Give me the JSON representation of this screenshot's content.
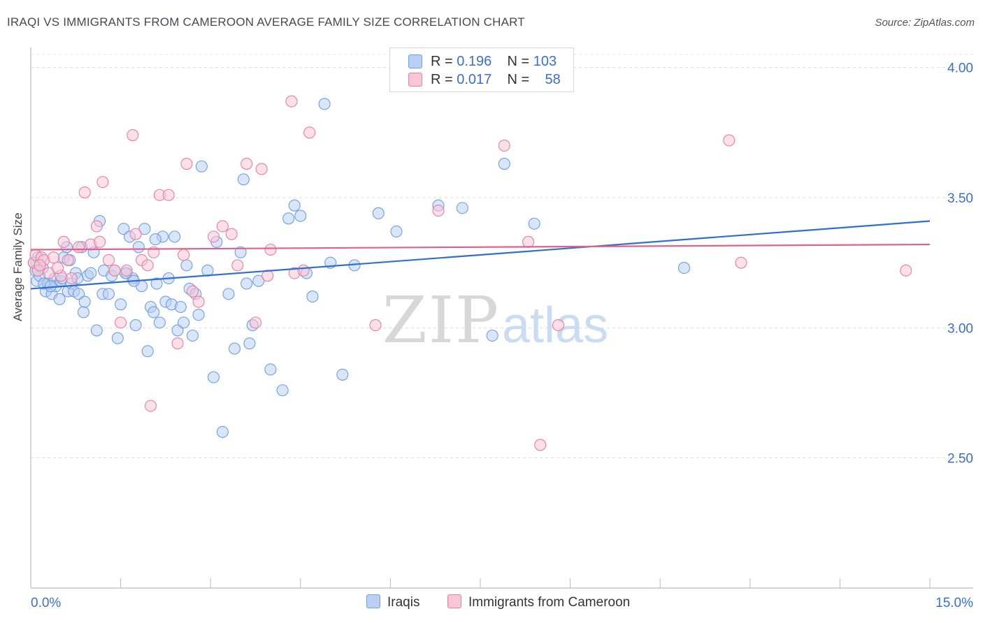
{
  "header": {
    "title": "IRAQI VS IMMIGRANTS FROM CAMEROON AVERAGE FAMILY SIZE CORRELATION CHART",
    "source": "Source: ZipAtlas.com"
  },
  "legend": {
    "rows": [
      {
        "r_label": "R =",
        "r_value": "0.196",
        "n_label": "N =",
        "n_value": "103"
      },
      {
        "r_label": "R =",
        "r_value": "0.017",
        "n_label": "N =",
        "n_value": "58"
      }
    ]
  },
  "watermark": {
    "zip": "ZIP",
    "atlas": "atlas"
  },
  "colors": {
    "iraqis": "#6f9fe0",
    "iraqis_fill": "#b9cff3",
    "cameroon": "#e97fa4",
    "cameroon_fill": "#f8c6d6",
    "iraqis_line": "#2f6fcf",
    "cameroon_line": "#e0608f",
    "tick_label": "#3a6fd0"
  },
  "chart_data": {
    "type": "scatter",
    "title": "IRAQI VS IMMIGRANTS FROM CAMEROON AVERAGE FAMILY SIZE CORRELATION CHART",
    "xlabel": "",
    "ylabel": "Average Family Size",
    "xlim": [
      0,
      15
    ],
    "ylim": [
      2.0,
      4.05
    ],
    "x_tick_labels": [
      "0.0%",
      "15.0%"
    ],
    "y_ticks": [
      2.5,
      3.0,
      3.5,
      4.0
    ],
    "y_tick_labels": [
      "2.50",
      "3.00",
      "3.50",
      "4.00"
    ],
    "grid": true,
    "legend_position": "top-center",
    "series": [
      {
        "name": "Iraqis",
        "regression": {
          "x": [
            0,
            15
          ],
          "y": [
            3.15,
            3.41
          ]
        },
        "points": [
          [
            0.05,
            3.25
          ],
          [
            0.08,
            3.22
          ],
          [
            0.1,
            3.18
          ],
          [
            0.12,
            3.27
          ],
          [
            0.15,
            3.2
          ],
          [
            0.2,
            3.23
          ],
          [
            0.25,
            3.14
          ],
          [
            0.28,
            3.17
          ],
          [
            0.3,
            3.17
          ],
          [
            0.35,
            3.13
          ],
          [
            0.4,
            3.19
          ],
          [
            0.42,
            3.16
          ],
          [
            0.48,
            3.11
          ],
          [
            0.5,
            3.18
          ],
          [
            0.55,
            3.27
          ],
          [
            0.6,
            3.31
          ],
          [
            0.62,
            3.14
          ],
          [
            0.68,
            3.17
          ],
          [
            0.72,
            3.14
          ],
          [
            0.75,
            3.21
          ],
          [
            0.8,
            3.13
          ],
          [
            0.85,
            3.31
          ],
          [
            0.88,
            3.06
          ],
          [
            0.9,
            3.1
          ],
          [
            0.95,
            3.2
          ],
          [
            1.0,
            3.21
          ],
          [
            1.1,
            2.99
          ],
          [
            1.15,
            3.41
          ],
          [
            1.2,
            3.13
          ],
          [
            1.22,
            3.22
          ],
          [
            1.3,
            3.13
          ],
          [
            1.35,
            3.2
          ],
          [
            1.4,
            3.22
          ],
          [
            1.45,
            2.96
          ],
          [
            1.5,
            3.09
          ],
          [
            1.55,
            3.38
          ],
          [
            1.6,
            3.21
          ],
          [
            1.65,
            3.35
          ],
          [
            1.7,
            3.19
          ],
          [
            1.75,
            3.01
          ],
          [
            1.8,
            3.31
          ],
          [
            1.85,
            3.16
          ],
          [
            1.9,
            3.38
          ],
          [
            1.95,
            2.91
          ],
          [
            2.0,
            3.08
          ],
          [
            2.05,
            3.06
          ],
          [
            2.1,
            3.17
          ],
          [
            2.15,
            3.02
          ],
          [
            2.2,
            3.35
          ],
          [
            2.25,
            3.1
          ],
          [
            2.3,
            3.19
          ],
          [
            2.35,
            3.09
          ],
          [
            2.4,
            3.35
          ],
          [
            2.45,
            2.99
          ],
          [
            2.5,
            3.08
          ],
          [
            2.55,
            3.02
          ],
          [
            2.6,
            3.24
          ],
          [
            2.65,
            3.15
          ],
          [
            2.7,
            2.97
          ],
          [
            2.75,
            3.13
          ],
          [
            2.8,
            3.05
          ],
          [
            2.85,
            3.62
          ],
          [
            2.95,
            3.22
          ],
          [
            3.05,
            2.81
          ],
          [
            3.1,
            3.33
          ],
          [
            3.2,
            2.6
          ],
          [
            3.3,
            3.13
          ],
          [
            3.4,
            2.92
          ],
          [
            3.5,
            3.29
          ],
          [
            3.55,
            3.57
          ],
          [
            3.6,
            3.17
          ],
          [
            3.65,
            2.94
          ],
          [
            3.7,
            3.01
          ],
          [
            3.8,
            3.18
          ],
          [
            4.0,
            2.84
          ],
          [
            4.2,
            2.76
          ],
          [
            4.3,
            3.42
          ],
          [
            4.4,
            3.47
          ],
          [
            4.5,
            3.43
          ],
          [
            4.6,
            3.21
          ],
          [
            4.7,
            3.12
          ],
          [
            4.9,
            3.86
          ],
          [
            5.0,
            3.25
          ],
          [
            5.2,
            2.82
          ],
          [
            5.4,
            3.24
          ],
          [
            5.8,
            3.44
          ],
          [
            6.1,
            3.37
          ],
          [
            6.8,
            3.47
          ],
          [
            7.2,
            3.46
          ],
          [
            7.7,
            2.97
          ],
          [
            7.9,
            3.63
          ],
          [
            8.4,
            3.4
          ],
          [
            10.9,
            3.23
          ],
          [
            0.12,
            3.22
          ],
          [
            0.22,
            3.17
          ],
          [
            0.33,
            3.16
          ],
          [
            0.52,
            3.19
          ],
          [
            0.65,
            3.26
          ],
          [
            0.78,
            3.19
          ],
          [
            1.05,
            3.29
          ],
          [
            1.58,
            3.21
          ],
          [
            1.72,
            3.18
          ],
          [
            2.08,
            3.34
          ]
        ]
      },
      {
        "name": "Immigrants from Cameroon",
        "regression": {
          "x": [
            0,
            15
          ],
          "y": [
            3.3,
            3.32
          ]
        },
        "points": [
          [
            0.05,
            3.25
          ],
          [
            0.08,
            3.28
          ],
          [
            0.12,
            3.22
          ],
          [
            0.18,
            3.27
          ],
          [
            0.22,
            3.26
          ],
          [
            0.3,
            3.21
          ],
          [
            0.38,
            3.27
          ],
          [
            0.5,
            3.2
          ],
          [
            0.55,
            3.33
          ],
          [
            0.62,
            3.26
          ],
          [
            0.68,
            3.19
          ],
          [
            0.8,
            3.31
          ],
          [
            0.9,
            3.52
          ],
          [
            1.0,
            3.32
          ],
          [
            1.1,
            3.39
          ],
          [
            1.2,
            3.56
          ],
          [
            1.3,
            3.26
          ],
          [
            1.4,
            3.22
          ],
          [
            1.5,
            3.02
          ],
          [
            1.6,
            3.22
          ],
          [
            1.7,
            3.74
          ],
          [
            1.75,
            3.36
          ],
          [
            1.85,
            3.26
          ],
          [
            1.95,
            3.24
          ],
          [
            2.0,
            2.7
          ],
          [
            2.05,
            3.29
          ],
          [
            2.15,
            3.51
          ],
          [
            2.3,
            3.51
          ],
          [
            2.45,
            2.94
          ],
          [
            2.55,
            3.28
          ],
          [
            2.6,
            3.63
          ],
          [
            2.7,
            3.14
          ],
          [
            2.8,
            3.1
          ],
          [
            3.05,
            3.35
          ],
          [
            3.2,
            3.39
          ],
          [
            3.35,
            3.36
          ],
          [
            3.45,
            3.24
          ],
          [
            3.6,
            3.63
          ],
          [
            3.75,
            3.02
          ],
          [
            3.85,
            3.61
          ],
          [
            3.95,
            3.2
          ],
          [
            4.0,
            3.3
          ],
          [
            4.35,
            3.87
          ],
          [
            4.4,
            3.21
          ],
          [
            4.55,
            3.22
          ],
          [
            4.65,
            3.75
          ],
          [
            5.75,
            3.01
          ],
          [
            6.8,
            3.45
          ],
          [
            7.9,
            3.7
          ],
          [
            8.3,
            3.33
          ],
          [
            8.5,
            2.55
          ],
          [
            8.8,
            3.01
          ],
          [
            11.65,
            3.72
          ],
          [
            11.85,
            3.25
          ],
          [
            14.6,
            3.22
          ],
          [
            0.15,
            3.24
          ],
          [
            0.45,
            3.23
          ],
          [
            1.15,
            3.33
          ]
        ]
      }
    ]
  },
  "bottom_legend": {
    "iraqis_label": "Iraqis",
    "cameroon_label": "Immigrants from Cameroon"
  }
}
